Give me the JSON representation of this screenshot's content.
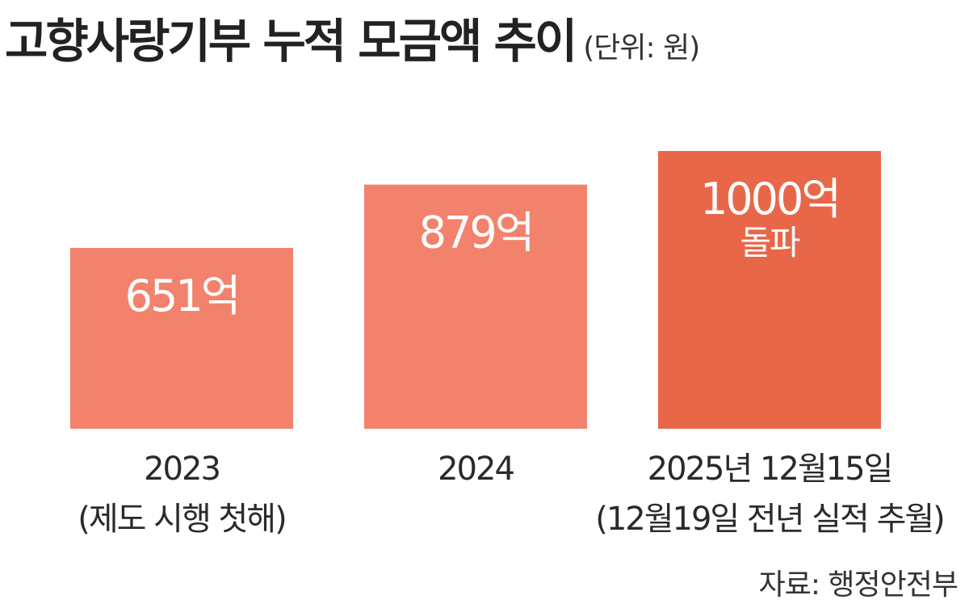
{
  "header": {
    "title": "고향사랑기부 누적 모금액 추이",
    "unit": "(단위: 원)"
  },
  "source": "자료: 행정안전부",
  "colors": {
    "bar_normal": "#f2826c",
    "bar_highlight": "#e96749",
    "label_text": "#ffffff",
    "axis_text": "#2a2a2a"
  },
  "chart_data": {
    "type": "bar",
    "title": "고향사랑기부 누적 모금액 추이",
    "unit": "(단위: 원)",
    "categories": [
      "2023",
      "2024",
      "2025년 12월15일"
    ],
    "category_sublabels": [
      "(제도 시행 첫해)",
      "",
      "(12월19일 전년 실적 추월)"
    ],
    "values": [
      651,
      879,
      1000
    ],
    "value_labels": [
      "651억",
      "879억",
      "1000억"
    ],
    "value_sublabels": [
      "",
      "",
      "돌파"
    ],
    "value_unit": "억 원",
    "highlight_index": 2,
    "ylim": [
      0,
      1000
    ],
    "grid": false,
    "legend": "none"
  }
}
